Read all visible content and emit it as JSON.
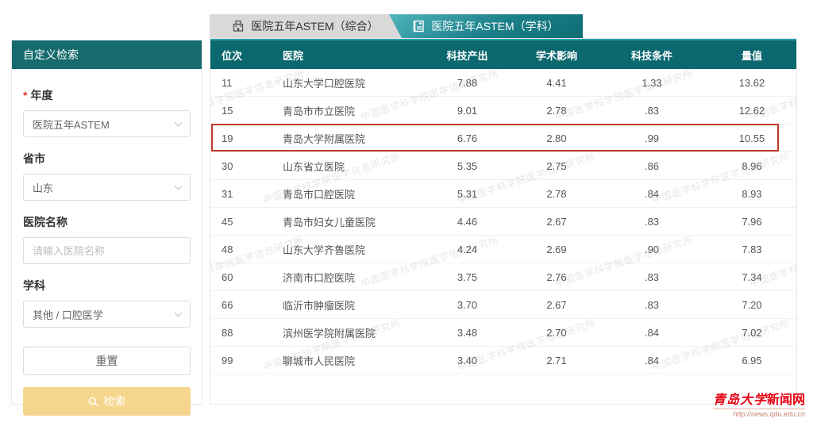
{
  "tabs": [
    {
      "label": "医院五年ASTEM（综合）",
      "active": false,
      "icon": "hospital-building-icon"
    },
    {
      "label": "医院五年ASTEM（学科）",
      "active": true,
      "icon": "medical-journal-icon"
    }
  ],
  "sidebar": {
    "title": "自定义检索",
    "required_marker": "*",
    "fields": [
      {
        "label": "年度",
        "required": true,
        "type": "select",
        "value": "医院五年ASTEM"
      },
      {
        "label": "省市",
        "required": false,
        "type": "select",
        "value": "山东"
      },
      {
        "label": "医院名称",
        "required": false,
        "type": "input",
        "placeholder": "请输入医院名称"
      },
      {
        "label": "学科",
        "required": false,
        "type": "select",
        "value": "其他 / 口腔医学"
      }
    ],
    "reset_label": "重置",
    "search_label": "检索"
  },
  "table": {
    "columns": [
      "位次",
      "医院",
      "科技产出",
      "学术影响",
      "科技条件",
      "量值"
    ],
    "rows": [
      {
        "rank": "11",
        "hospital": "山东大学口腔医院",
        "output": "7.88",
        "impact": "4.41",
        "condition": "1.33",
        "value": "13.62",
        "highlighted": false
      },
      {
        "rank": "15",
        "hospital": "青岛市市立医院",
        "output": "9.01",
        "impact": "2.78",
        "condition": ".83",
        "value": "12.62",
        "highlighted": false
      },
      {
        "rank": "19",
        "hospital": "青岛大学附属医院",
        "output": "6.76",
        "impact": "2.80",
        "condition": ".99",
        "value": "10.55",
        "highlighted": true
      },
      {
        "rank": "30",
        "hospital": "山东省立医院",
        "output": "5.35",
        "impact": "2.75",
        "condition": ".86",
        "value": "8.96",
        "highlighted": false
      },
      {
        "rank": "31",
        "hospital": "青岛市口腔医院",
        "output": "5.31",
        "impact": "2.78",
        "condition": ".84",
        "value": "8.93",
        "highlighted": false
      },
      {
        "rank": "45",
        "hospital": "青岛市妇女儿童医院",
        "output": "4.46",
        "impact": "2.67",
        "condition": ".83",
        "value": "7.96",
        "highlighted": false
      },
      {
        "rank": "48",
        "hospital": "山东大学齐鲁医院",
        "output": "4.24",
        "impact": "2.69",
        "condition": ".90",
        "value": "7.83",
        "highlighted": false
      },
      {
        "rank": "60",
        "hospital": "济南市口腔医院",
        "output": "3.75",
        "impact": "2.76",
        "condition": ".83",
        "value": "7.34",
        "highlighted": false
      },
      {
        "rank": "66",
        "hospital": "临沂市肿瘤医院",
        "output": "3.70",
        "impact": "2.67",
        "condition": ".83",
        "value": "7.20",
        "highlighted": false
      },
      {
        "rank": "88",
        "hospital": "滨州医学院附属医院",
        "output": "3.48",
        "impact": "2.70",
        "condition": ".84",
        "value": "7.02",
        "highlighted": false
      },
      {
        "rank": "99",
        "hospital": "聊城市人民医院",
        "output": "3.40",
        "impact": "2.71",
        "condition": ".84",
        "value": "6.95",
        "highlighted": false
      }
    ]
  },
  "watermark": "中国医学科学院医学信息研究所",
  "footer_logo": {
    "title_calligraphy": "青岛大学",
    "title_rest": "新闻网",
    "url": "http://news.qdu.edu.cn"
  },
  "colors": {
    "teal_header": "#0c686f",
    "teal_sidebar": "#156b6d",
    "tab_active_top": "#4fb5bd",
    "tab_active_bottom": "#0d6d75",
    "tab_inactive_bg": "#d9d9d9",
    "highlight_border": "#bf3a2b",
    "search_button_bg": "#f6d68c",
    "logo_red": "#e60012"
  }
}
